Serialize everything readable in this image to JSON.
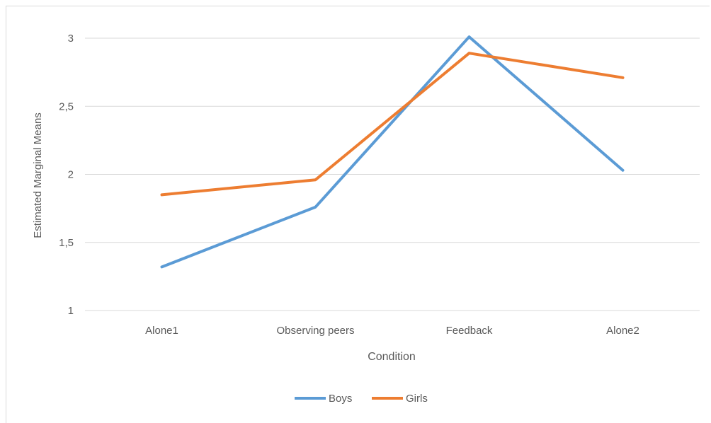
{
  "chart_data": {
    "type": "line",
    "title": "",
    "xlabel": "Condition",
    "ylabel": "Estimated Marginal Means",
    "categories": [
      "Alone1",
      "Observing peers",
      "Feedback",
      "Alone2"
    ],
    "ylim": [
      1,
      3
    ],
    "yticks": [
      1,
      1.5,
      2,
      2.5,
      3
    ],
    "ytick_labels": [
      "1",
      "1,5",
      "2",
      "2,5",
      "3"
    ],
    "grid": true,
    "legend_position": "bottom",
    "series": [
      {
        "name": "Boys",
        "color": "#5b9bd5",
        "values": [
          1.32,
          1.76,
          3.01,
          2.03
        ]
      },
      {
        "name": "Girls",
        "color": "#ed7d31",
        "values": [
          1.85,
          1.96,
          2.89,
          2.71
        ]
      }
    ],
    "gridline_color": "#d9d9d9",
    "text_color": "#595959"
  }
}
